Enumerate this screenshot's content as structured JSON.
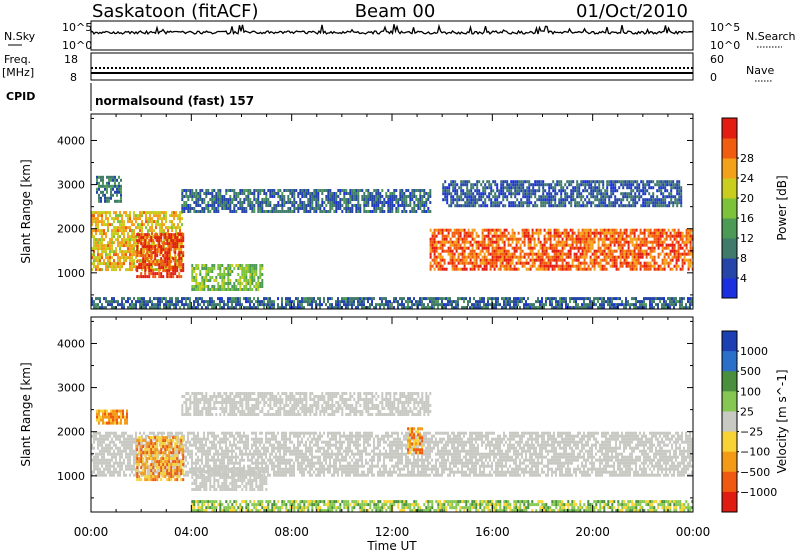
{
  "header": {
    "site": "Saskatoon (fitACF)",
    "beam": "Beam 00",
    "date": "01/Oct/2010"
  },
  "strip_labels": {
    "nsky": "N.Sky",
    "nsky_ticks": [
      "10^5",
      "10^0"
    ],
    "nsearch": "N.Search",
    "nsearch_ticks": [
      "10^5",
      "10^0"
    ],
    "freq_top": "Freq.",
    "freq_unit": "[MHz]",
    "freq_ticks": [
      "18",
      "8"
    ],
    "nave": "Nave",
    "nave_ticks": [
      "60",
      "0"
    ],
    "cpid": "CPID",
    "cpid_value": "normalsound (fast) 157"
  },
  "colors": {
    "power_scale": [
      "#1a2fe0",
      "#2546a8",
      "#3f7a6a",
      "#4c9a55",
      "#7cc23a",
      "#c8cd1e",
      "#f3a11a",
      "#f05c10",
      "#e41d12"
    ],
    "velocity_scale": [
      "#1c3fb4",
      "#2a70c8",
      "#4a8f3e",
      "#86c653",
      "#c9c9c3",
      "#f7d335",
      "#f39a16",
      "#ef5a10",
      "#e01b12"
    ],
    "ground_gray": "#c9c9c3"
  },
  "chart_data": [
    {
      "type": "heatmap",
      "title": "Power",
      "xlabel": "Time UT",
      "ylabel": "Slant Range [km]",
      "x_ticks": [
        "00:00",
        "04:00",
        "08:00",
        "12:00",
        "16:00",
        "20:00",
        "00:00"
      ],
      "xlim_hours": [
        0,
        24
      ],
      "ylim": [
        180,
        4600
      ],
      "y_ticks": [
        1000,
        2000,
        3000,
        4000
      ],
      "colorbar_label": "Power [dB]",
      "colorbar_ticks": [
        4,
        8,
        12,
        16,
        20,
        24,
        28
      ],
      "colorbar_range": [
        0,
        30
      ],
      "regions": [
        {
          "from_h": 0.0,
          "to_h": 3.6,
          "range_low": 1050,
          "range_high": 2400,
          "level": 20
        },
        {
          "from_h": 1.8,
          "to_h": 3.7,
          "range_low": 900,
          "range_high": 1900,
          "level": 27
        },
        {
          "from_h": 0.2,
          "to_h": 1.2,
          "range_low": 2600,
          "range_high": 3200,
          "level": 8
        },
        {
          "from_h": 4.0,
          "to_h": 6.8,
          "range_low": 650,
          "range_high": 1200,
          "level": 14
        },
        {
          "from_h": 3.6,
          "to_h": 13.5,
          "range_low": 2400,
          "range_high": 2900,
          "level": 7
        },
        {
          "from_h": 13.5,
          "to_h": 24.0,
          "range_low": 1100,
          "range_high": 2000,
          "level": 25
        },
        {
          "from_h": 14.0,
          "to_h": 23.5,
          "range_low": 2500,
          "range_high": 3100,
          "level": 6
        },
        {
          "from_h": 0.0,
          "to_h": 24.0,
          "range_low": 180,
          "range_high": 450,
          "level": 7
        }
      ]
    },
    {
      "type": "heatmap",
      "title": "Velocity",
      "xlabel": "Time UT",
      "ylabel": "Slant Range [km]",
      "x_ticks": [
        "00:00",
        "04:00",
        "08:00",
        "12:00",
        "16:00",
        "20:00",
        "00:00"
      ],
      "xlim_hours": [
        0,
        24
      ],
      "ylim": [
        180,
        4600
      ],
      "y_ticks": [
        1000,
        2000,
        3000,
        4000
      ],
      "colorbar_label": "Velocity [m s^-1]",
      "colorbar_ticks": [
        "1000",
        "500",
        "100",
        "25",
        "−25",
        "−100",
        "−500",
        "−1000"
      ],
      "regions": [
        {
          "from_h": 0.0,
          "to_h": 24.0,
          "range_low": 1000,
          "range_high": 2000,
          "class": "ground"
        },
        {
          "from_h": 1.8,
          "to_h": 3.7,
          "range_low": 900,
          "range_high": 1900,
          "class": "away"
        },
        {
          "from_h": 0.2,
          "to_h": 1.4,
          "range_low": 2200,
          "range_high": 2500,
          "class": "away"
        },
        {
          "from_h": 4.0,
          "to_h": 7.0,
          "range_low": 700,
          "range_high": 1200,
          "class": "ground"
        },
        {
          "from_h": 3.6,
          "to_h": 13.5,
          "range_low": 2400,
          "range_high": 2900,
          "class": "ground"
        },
        {
          "from_h": 12.6,
          "to_h": 13.2,
          "range_low": 1500,
          "range_high": 2100,
          "class": "away"
        },
        {
          "from_h": 4.0,
          "to_h": 24.0,
          "range_low": 180,
          "range_high": 450,
          "class": "toward"
        }
      ]
    }
  ]
}
